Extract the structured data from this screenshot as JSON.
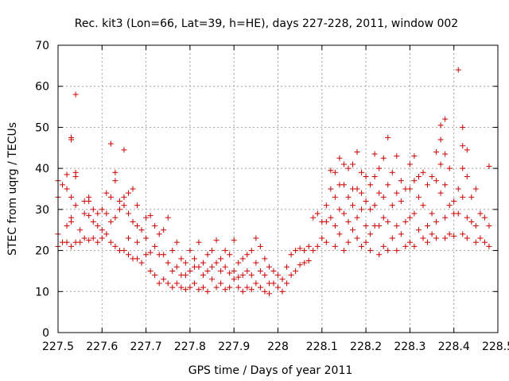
{
  "chart_data": {
    "type": "scatter",
    "title": "Rec. kit3 (Lon=66, Lat=39, h=HE), days 227-228, 2011, window 002",
    "xlabel": "GPS time / Days of year 2011",
    "ylabel": "STEC from uqrg / TECUs",
    "xlim": [
      227.5,
      228.5
    ],
    "ylim": [
      0,
      70
    ],
    "x_ticks": [
      227.5,
      227.6,
      227.7,
      227.8,
      227.9,
      228.0,
      228.1,
      228.2,
      228.3,
      228.4,
      228.5
    ],
    "x_tick_labels": [
      "227.5",
      "227.6",
      "227.7",
      "227.8",
      "227.9",
      "228",
      "228.1",
      "228.2",
      "228.3",
      "228.4",
      "228.5"
    ],
    "y_ticks": [
      0,
      10,
      20,
      30,
      40,
      50,
      60,
      70
    ],
    "y_tick_labels": [
      "0",
      "10",
      "20",
      "30",
      "40",
      "50",
      "60",
      "70"
    ],
    "grid": true,
    "marker": "+",
    "color": "#cc0000",
    "series": [
      {
        "points": [
          [
            227.5,
            37
          ],
          [
            227.5,
            33
          ],
          [
            227.5,
            24
          ],
          [
            227.5,
            21
          ],
          [
            227.51,
            36
          ],
          [
            227.51,
            22
          ],
          [
            227.52,
            38.5
          ],
          [
            227.52,
            35
          ],
          [
            227.52,
            26
          ],
          [
            227.52,
            22
          ],
          [
            227.53,
            47.5
          ],
          [
            227.53,
            47
          ],
          [
            227.53,
            33
          ],
          [
            227.53,
            28
          ],
          [
            227.53,
            27
          ],
          [
            227.53,
            21
          ],
          [
            227.54,
            58
          ],
          [
            227.54,
            39
          ],
          [
            227.54,
            38
          ],
          [
            227.54,
            31
          ],
          [
            227.54,
            22
          ],
          [
            227.55,
            25
          ],
          [
            227.55,
            22
          ],
          [
            227.56,
            32
          ],
          [
            227.56,
            29
          ],
          [
            227.56,
            23
          ],
          [
            227.57,
            33
          ],
          [
            227.57,
            32
          ],
          [
            227.57,
            28.5
          ],
          [
            227.57,
            22.5
          ],
          [
            227.58,
            30
          ],
          [
            227.58,
            27
          ],
          [
            227.58,
            23
          ],
          [
            227.59,
            29
          ],
          [
            227.59,
            26
          ],
          [
            227.59,
            22
          ],
          [
            227.6,
            30
          ],
          [
            227.6,
            25
          ],
          [
            227.6,
            23
          ],
          [
            227.61,
            34
          ],
          [
            227.61,
            29
          ],
          [
            227.61,
            24
          ],
          [
            227.62,
            46
          ],
          [
            227.62,
            33
          ],
          [
            227.62,
            27
          ],
          [
            227.62,
            22
          ],
          [
            227.63,
            39
          ],
          [
            227.63,
            37
          ],
          [
            227.63,
            28
          ],
          [
            227.63,
            21
          ],
          [
            227.64,
            32
          ],
          [
            227.64,
            30
          ],
          [
            227.64,
            20
          ],
          [
            227.65,
            44.5
          ],
          [
            227.65,
            33
          ],
          [
            227.65,
            31
          ],
          [
            227.65,
            20
          ],
          [
            227.66,
            34
          ],
          [
            227.66,
            29
          ],
          [
            227.66,
            23
          ],
          [
            227.66,
            19
          ],
          [
            227.67,
            35
          ],
          [
            227.67,
            27
          ],
          [
            227.67,
            18
          ],
          [
            227.68,
            31
          ],
          [
            227.68,
            26
          ],
          [
            227.68,
            22
          ],
          [
            227.68,
            18
          ],
          [
            227.69,
            25
          ],
          [
            227.69,
            17
          ],
          [
            227.7,
            28
          ],
          [
            227.7,
            23
          ],
          [
            227.7,
            19
          ],
          [
            227.71,
            28.5
          ],
          [
            227.71,
            19.5
          ],
          [
            227.71,
            15
          ],
          [
            227.72,
            26
          ],
          [
            227.72,
            21
          ],
          [
            227.72,
            14
          ],
          [
            227.73,
            24
          ],
          [
            227.73,
            19
          ],
          [
            227.73,
            12
          ],
          [
            227.74,
            25
          ],
          [
            227.74,
            19
          ],
          [
            227.74,
            13
          ],
          [
            227.75,
            28
          ],
          [
            227.75,
            17
          ],
          [
            227.75,
            12
          ],
          [
            227.76,
            20
          ],
          [
            227.76,
            15
          ],
          [
            227.76,
            11
          ],
          [
            227.77,
            22
          ],
          [
            227.77,
            16
          ],
          [
            227.77,
            12
          ],
          [
            227.78,
            18
          ],
          [
            227.78,
            14
          ],
          [
            227.78,
            11
          ],
          [
            227.79,
            17
          ],
          [
            227.79,
            14
          ],
          [
            227.79,
            10.5
          ],
          [
            227.8,
            20
          ],
          [
            227.8,
            15
          ],
          [
            227.8,
            11
          ],
          [
            227.81,
            18
          ],
          [
            227.81,
            16
          ],
          [
            227.81,
            12
          ],
          [
            227.82,
            22
          ],
          [
            227.82,
            16
          ],
          [
            227.82,
            10.5
          ],
          [
            227.83,
            17
          ],
          [
            227.83,
            14
          ],
          [
            227.83,
            11
          ],
          [
            227.84,
            19
          ],
          [
            227.84,
            15
          ],
          [
            227.84,
            10
          ],
          [
            227.85,
            20
          ],
          [
            227.85,
            16
          ],
          [
            227.85,
            13
          ],
          [
            227.86,
            22.5
          ],
          [
            227.86,
            17
          ],
          [
            227.86,
            11
          ],
          [
            227.87,
            18
          ],
          [
            227.87,
            15
          ],
          [
            227.87,
            12
          ],
          [
            227.88,
            20
          ],
          [
            227.88,
            16
          ],
          [
            227.88,
            10.5
          ],
          [
            227.89,
            19
          ],
          [
            227.89,
            14.5
          ],
          [
            227.89,
            11
          ],
          [
            227.9,
            22.5
          ],
          [
            227.9,
            15
          ],
          [
            227.9,
            13
          ],
          [
            227.91,
            17
          ],
          [
            227.91,
            13.5
          ],
          [
            227.91,
            11
          ],
          [
            227.92,
            18
          ],
          [
            227.92,
            14
          ],
          [
            227.92,
            10
          ],
          [
            227.93,
            19
          ],
          [
            227.93,
            15
          ],
          [
            227.93,
            11
          ],
          [
            227.94,
            20
          ],
          [
            227.94,
            14
          ],
          [
            227.94,
            10.5
          ],
          [
            227.95,
            23
          ],
          [
            227.95,
            17
          ],
          [
            227.95,
            12
          ],
          [
            227.96,
            21
          ],
          [
            227.96,
            15
          ],
          [
            227.96,
            11
          ],
          [
            227.97,
            18
          ],
          [
            227.97,
            14
          ],
          [
            227.97,
            10
          ],
          [
            227.98,
            16
          ],
          [
            227.98,
            12
          ],
          [
            227.98,
            9.5
          ],
          [
            227.99,
            15
          ],
          [
            227.99,
            12
          ],
          [
            228.0,
            14
          ],
          [
            228.0,
            11
          ],
          [
            228.01,
            13
          ],
          [
            228.01,
            10
          ],
          [
            228.02,
            16
          ],
          [
            228.02,
            12
          ],
          [
            228.03,
            19
          ],
          [
            228.03,
            14
          ],
          [
            228.04,
            20
          ],
          [
            228.04,
            15
          ],
          [
            228.05,
            20.5
          ],
          [
            228.05,
            16.5
          ],
          [
            228.06,
            20
          ],
          [
            228.06,
            17
          ],
          [
            228.07,
            21
          ],
          [
            228.07,
            17.5
          ],
          [
            228.08,
            28
          ],
          [
            228.08,
            20
          ],
          [
            228.09,
            29
          ],
          [
            228.09,
            21
          ],
          [
            228.1,
            27
          ],
          [
            228.1,
            23
          ],
          [
            228.11,
            31
          ],
          [
            228.11,
            27
          ],
          [
            228.11,
            22
          ],
          [
            228.12,
            39.5
          ],
          [
            228.12,
            35
          ],
          [
            228.12,
            28
          ],
          [
            228.13,
            39
          ],
          [
            228.13,
            33
          ],
          [
            228.13,
            26
          ],
          [
            228.13,
            21
          ],
          [
            228.14,
            42.5
          ],
          [
            228.14,
            36
          ],
          [
            228.14,
            30
          ],
          [
            228.14,
            24
          ],
          [
            228.15,
            41
          ],
          [
            228.15,
            36
          ],
          [
            228.15,
            29
          ],
          [
            228.15,
            20
          ],
          [
            228.16,
            40
          ],
          [
            228.16,
            33
          ],
          [
            228.16,
            27
          ],
          [
            228.16,
            22
          ],
          [
            228.17,
            41
          ],
          [
            228.17,
            35
          ],
          [
            228.17,
            31
          ],
          [
            228.17,
            25
          ],
          [
            228.18,
            44
          ],
          [
            228.18,
            35
          ],
          [
            228.18,
            28
          ],
          [
            228.18,
            23
          ],
          [
            228.19,
            39
          ],
          [
            228.19,
            34
          ],
          [
            228.19,
            30
          ],
          [
            228.19,
            21
          ],
          [
            228.2,
            38
          ],
          [
            228.2,
            32
          ],
          [
            228.2,
            26
          ],
          [
            228.2,
            22
          ],
          [
            228.21,
            36
          ],
          [
            228.21,
            30
          ],
          [
            228.21,
            24
          ],
          [
            228.21,
            20
          ],
          [
            228.22,
            43.5
          ],
          [
            228.22,
            38
          ],
          [
            228.22,
            31
          ],
          [
            228.22,
            26
          ],
          [
            228.23,
            40
          ],
          [
            228.23,
            34
          ],
          [
            228.23,
            26
          ],
          [
            228.23,
            19
          ],
          [
            228.24,
            42.5
          ],
          [
            228.24,
            33
          ],
          [
            228.24,
            28
          ],
          [
            228.24,
            21
          ],
          [
            228.25,
            47.5
          ],
          [
            228.25,
            36
          ],
          [
            228.25,
            27
          ],
          [
            228.25,
            20
          ],
          [
            228.26,
            39
          ],
          [
            228.26,
            31
          ],
          [
            228.26,
            23
          ],
          [
            228.27,
            43
          ],
          [
            228.27,
            34
          ],
          [
            228.27,
            26
          ],
          [
            228.27,
            20
          ],
          [
            228.28,
            37
          ],
          [
            228.28,
            32
          ],
          [
            228.28,
            24
          ],
          [
            228.29,
            35
          ],
          [
            228.29,
            27
          ],
          [
            228.29,
            21
          ],
          [
            228.3,
            41
          ],
          [
            228.3,
            35
          ],
          [
            228.3,
            28
          ],
          [
            228.3,
            22
          ],
          [
            228.31,
            43
          ],
          [
            228.31,
            37
          ],
          [
            228.31,
            29
          ],
          [
            228.31,
            21
          ],
          [
            228.32,
            38
          ],
          [
            228.32,
            33
          ],
          [
            228.32,
            25
          ],
          [
            228.33,
            39
          ],
          [
            228.33,
            31
          ],
          [
            228.33,
            23
          ],
          [
            228.34,
            36
          ],
          [
            228.34,
            26
          ],
          [
            228.34,
            22
          ],
          [
            228.35,
            38
          ],
          [
            228.35,
            29
          ],
          [
            228.35,
            24
          ],
          [
            228.36,
            44
          ],
          [
            228.36,
            37
          ],
          [
            228.36,
            27
          ],
          [
            228.36,
            23
          ],
          [
            228.37,
            50.5
          ],
          [
            228.37,
            47
          ],
          [
            228.37,
            41
          ],
          [
            228.37,
            34
          ],
          [
            228.38,
            52
          ],
          [
            228.38,
            43.5
          ],
          [
            228.38,
            36
          ],
          [
            228.38,
            28
          ],
          [
            228.38,
            23
          ],
          [
            228.39,
            40
          ],
          [
            228.39,
            31
          ],
          [
            228.39,
            24
          ],
          [
            228.4,
            32
          ],
          [
            228.4,
            29
          ],
          [
            228.4,
            23.5
          ],
          [
            228.41,
            64
          ],
          [
            228.41,
            35
          ],
          [
            228.41,
            29
          ],
          [
            228.42,
            50
          ],
          [
            228.42,
            45.5
          ],
          [
            228.42,
            40
          ],
          [
            228.42,
            33
          ],
          [
            228.42,
            24
          ],
          [
            228.43,
            44.5
          ],
          [
            228.43,
            38
          ],
          [
            228.43,
            28
          ],
          [
            228.43,
            23
          ],
          [
            228.44,
            33
          ],
          [
            228.44,
            27
          ],
          [
            228.45,
            35
          ],
          [
            228.45,
            26
          ],
          [
            228.45,
            22
          ],
          [
            228.46,
            29
          ],
          [
            228.46,
            23
          ],
          [
            228.47,
            28
          ],
          [
            228.47,
            22
          ],
          [
            228.48,
            40.5
          ],
          [
            228.48,
            26
          ],
          [
            228.48,
            21
          ]
        ]
      }
    ]
  }
}
